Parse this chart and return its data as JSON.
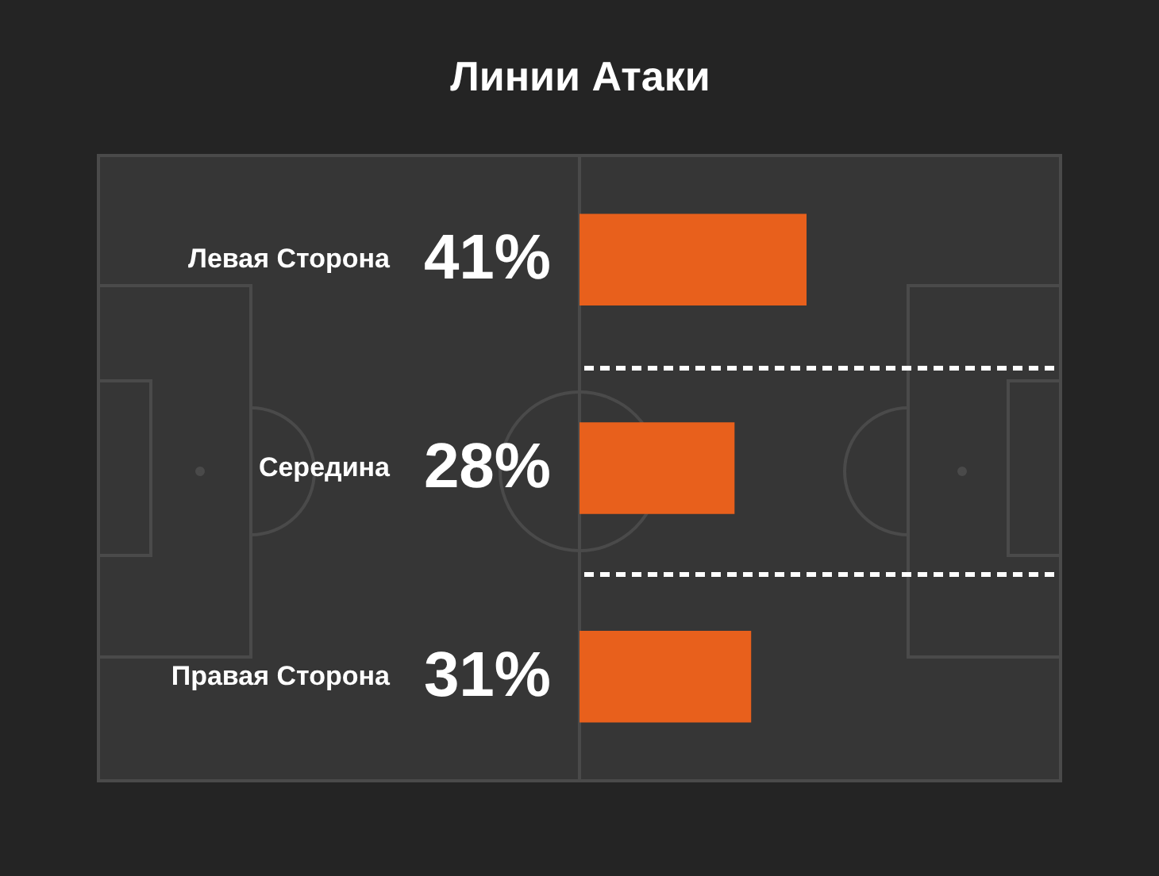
{
  "chart_data": {
    "type": "bar",
    "title": "Линии Атаки",
    "orientation": "horizontal",
    "categories": [
      "Левая Сторона",
      "Середина",
      "Правая Сторона"
    ],
    "values": [
      41,
      28,
      31
    ],
    "value_labels": [
      "41%",
      "28%",
      "31%"
    ],
    "color": "#e8601c"
  }
}
